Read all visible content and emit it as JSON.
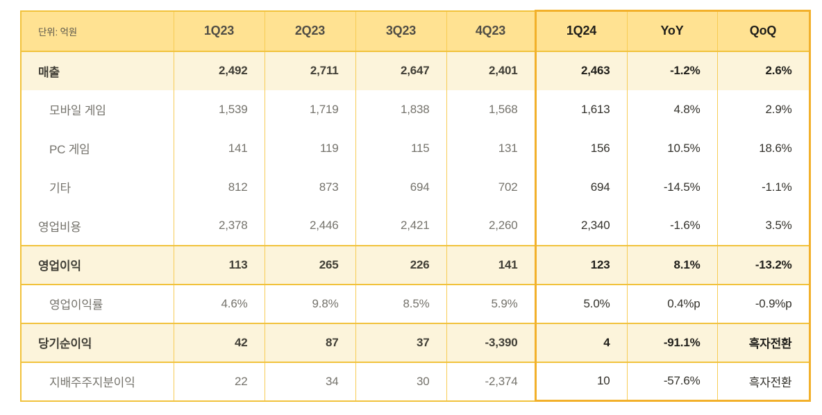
{
  "chart_data": {
    "type": "table",
    "unit_label": "단위: 억원",
    "columns": [
      "1Q23",
      "2Q23",
      "3Q23",
      "4Q23",
      "1Q24",
      "YoY",
      "QoQ"
    ],
    "highlight_columns": [
      "1Q24",
      "YoY",
      "QoQ"
    ],
    "rows": [
      {
        "label": "매출",
        "indent": 0,
        "band": true,
        "bold": true,
        "bordered": false,
        "values": [
          "2,492",
          "2,711",
          "2,647",
          "2,401",
          "2,463",
          "-1.2%",
          "2.6%"
        ]
      },
      {
        "label": "모바일 게임",
        "indent": 1,
        "band": false,
        "bold": false,
        "bordered": false,
        "values": [
          "1,539",
          "1,719",
          "1,838",
          "1,568",
          "1,613",
          "4.8%",
          "2.9%"
        ]
      },
      {
        "label": "PC 게임",
        "indent": 1,
        "band": false,
        "bold": false,
        "bordered": false,
        "values": [
          "141",
          "119",
          "115",
          "131",
          "156",
          "10.5%",
          "18.6%"
        ]
      },
      {
        "label": "기타",
        "indent": 1,
        "band": false,
        "bold": false,
        "bordered": false,
        "values": [
          "812",
          "873",
          "694",
          "702",
          "694",
          "-14.5%",
          "-1.1%"
        ]
      },
      {
        "label": "영업비용",
        "indent": 0,
        "band": false,
        "bold": false,
        "bordered": false,
        "values": [
          "2,378",
          "2,446",
          "2,421",
          "2,260",
          "2,340",
          "-1.6%",
          "3.5%"
        ]
      },
      {
        "label": "영업이익",
        "indent": 0,
        "band": true,
        "bold": true,
        "bordered": true,
        "values": [
          "113",
          "265",
          "226",
          "141",
          "123",
          "8.1%",
          "-13.2%"
        ]
      },
      {
        "label": "영업이익률",
        "indent": 1,
        "band": false,
        "bold": false,
        "bordered": false,
        "values": [
          "4.6%",
          "9.8%",
          "8.5%",
          "5.9%",
          "5.0%",
          "0.4%p",
          "-0.9%p"
        ]
      },
      {
        "label": "당기순이익",
        "indent": 0,
        "band": true,
        "bold": true,
        "bordered": true,
        "values": [
          "42",
          "87",
          "37",
          "-3,390",
          "4",
          "-91.1%",
          "흑자전환"
        ]
      },
      {
        "label": "지배주주지분이익",
        "indent": 1,
        "band": false,
        "bold": false,
        "bordered": false,
        "values": [
          "22",
          "34",
          "30",
          "-2,374",
          "10",
          "-57.6%",
          "흑자전환"
        ]
      }
    ]
  },
  "colors": {
    "header_background": "#ffe292",
    "band_background": "#fcf4db",
    "column_line": "#f7cc55",
    "row_frame": "#f1c23b",
    "highlight_border": "#f2b02a",
    "text_dark": "#1f1e1a",
    "text_gray": "#74726b"
  }
}
